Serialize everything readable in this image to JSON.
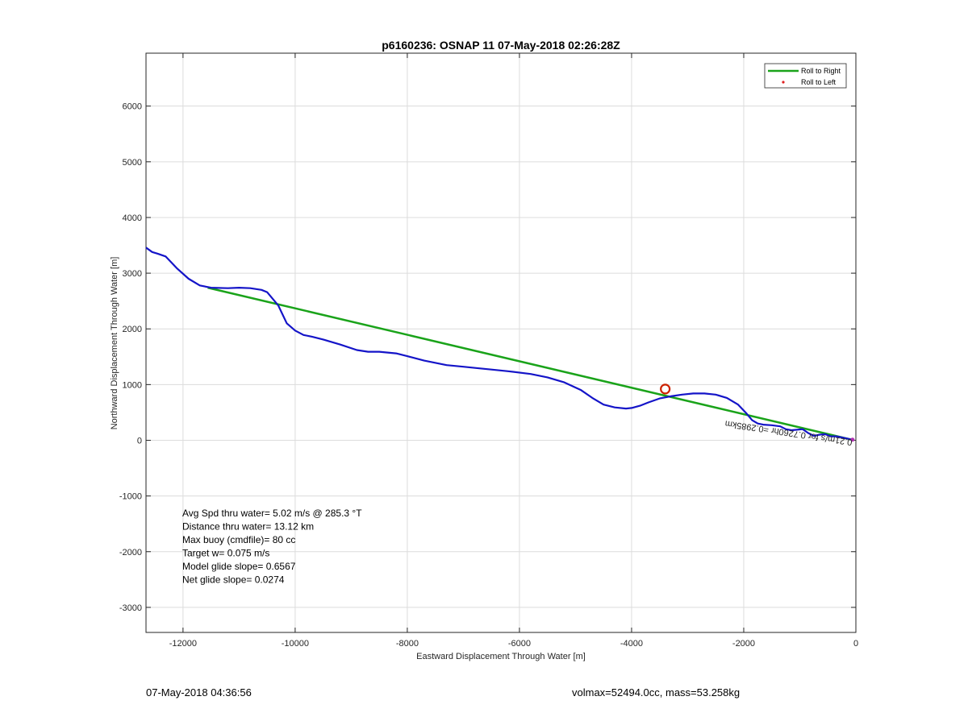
{
  "chart_data": {
    "type": "line",
    "title": "p6160236: OSNAP 11 07-May-2018 02:26:28Z",
    "xlabel": "Eastward Displacement Through Water [m]",
    "ylabel": "Northward Displacement Through Water [m]",
    "xlim": [
      -12660,
      0
    ],
    "ylim": [
      -3450,
      6950
    ],
    "xticks": [
      -12000,
      -10000,
      -8000,
      -6000,
      -4000,
      -2000,
      0
    ],
    "yticks": [
      -3000,
      -2000,
      -1000,
      0,
      1000,
      2000,
      3000,
      4000,
      5000,
      6000
    ],
    "grid": true,
    "legend_position": "top-right",
    "legend": [
      {
        "label": "Roll to Right",
        "style": "line",
        "color": "#1aa31a"
      },
      {
        "label": "Roll to Left",
        "style": "dot",
        "color": "#e02020"
      }
    ],
    "series": [
      {
        "name": "Roll to Right",
        "color": "#1aa31a",
        "x": [
          -11560,
          -70
        ],
        "y": [
          2740,
          10
        ]
      },
      {
        "color": "#1414c8",
        "x": [
          -12660,
          -12550,
          -12450,
          -12310,
          -12100,
          -11900,
          -11700,
          -11500,
          -11200,
          -11000,
          -10800,
          -10600,
          -10500,
          -10300,
          -10150,
          -10000,
          -9850,
          -9700,
          -9500,
          -9200,
          -8900,
          -8700,
          -8500,
          -8200,
          -8000,
          -7700,
          -7300,
          -7000,
          -6700,
          -6500,
          -6200,
          -5800,
          -5500,
          -5200,
          -4900,
          -4700,
          -4500,
          -4300,
          -4100,
          -4000,
          -3850,
          -3700,
          -3500,
          -3300,
          -3100,
          -2900,
          -2700,
          -2500,
          -2300,
          -2100,
          -1950,
          -1850,
          -1750,
          -1650,
          -1500,
          -1350,
          -1250,
          -1150,
          -1050,
          -950,
          -850,
          -750,
          -650,
          -550,
          -450,
          -350,
          -250,
          -150,
          -60
        ],
        "y": [
          3460,
          3380,
          3350,
          3300,
          3080,
          2900,
          2780,
          2740,
          2730,
          2740,
          2730,
          2700,
          2660,
          2420,
          2100,
          1970,
          1890,
          1860,
          1810,
          1720,
          1620,
          1590,
          1590,
          1560,
          1510,
          1430,
          1350,
          1320,
          1290,
          1270,
          1240,
          1190,
          1130,
          1040,
          900,
          760,
          640,
          590,
          570,
          580,
          620,
          680,
          750,
          790,
          820,
          840,
          840,
          820,
          760,
          640,
          480,
          360,
          300,
          280,
          270,
          250,
          200,
          180,
          190,
          200,
          130,
          80,
          100,
          110,
          70,
          70,
          50,
          30,
          10
        ]
      }
    ],
    "annotations": {
      "stats": [
        "Avg Spd thru water=  5.02 m/s @ 285.3 °T",
        "Distance thru water= 13.12 km",
        "Max buoy (cmdfile)= 80 cc",
        "Target w= 0.075 m/s",
        "Model glide slope= 0.6567",
        "Net glide slope= 0.0274"
      ],
      "rotated_label": "0.21m/s for 0.7260hr =0.2985km",
      "circle_marker": {
        "x": -3400,
        "y": 920,
        "color": "#cc2200"
      },
      "end_marker": {
        "x": -60,
        "y": 10,
        "color": "#b030b0"
      }
    }
  },
  "footer": {
    "left": "07-May-2018 04:36:56",
    "right": "volmax=52494.0cc, mass=53.258kg"
  }
}
